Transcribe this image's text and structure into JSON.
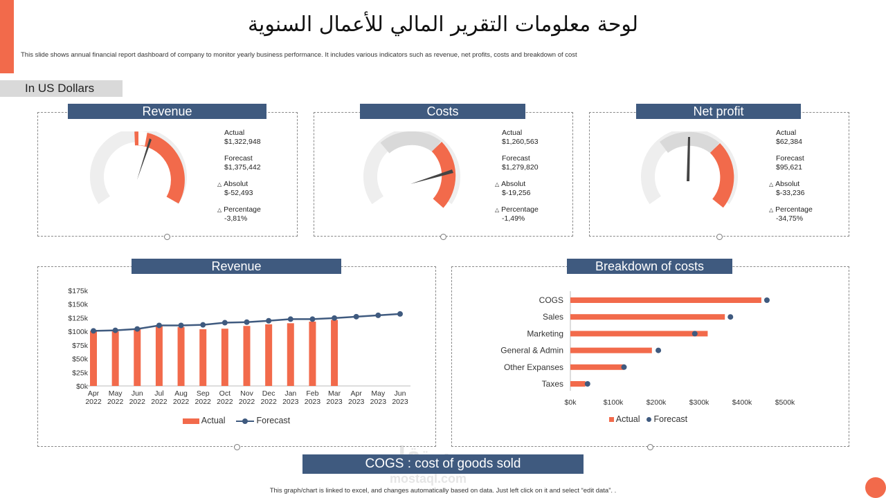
{
  "header": {
    "title": "لوحة معلومات التقرير المالي للأعمال السنوية",
    "subtitle": "This slide shows annual financial report dashboard of company to monitor  yearly business performance. It includes various indicators such as revenue, net profits, costs and breakdown of cost",
    "currency": "In US Dollars"
  },
  "colors": {
    "accent": "#f26a4b",
    "navy": "#3f5a7f",
    "gauge_bg": "#d9d9d9"
  },
  "gauges": [
    {
      "title": "Revenue",
      "actual_label": "Actual",
      "actual": "$1,322,948",
      "forecast_label": "Forecast",
      "forecast": "$1,375,442",
      "absolute_label": "Absolut",
      "absolute": "$-52,493",
      "percentage_label": "Percentage",
      "percentage": "-3,81%"
    },
    {
      "title": "Costs",
      "actual_label": "Actual",
      "actual": "$1,260,563",
      "forecast_label": "Forecast",
      "forecast": "$1,279,820",
      "absolute_label": "Absolut",
      "absolute": "$-19,256",
      "percentage_label": "Percentage",
      "percentage": "-1,49%"
    },
    {
      "title": "Net profit",
      "actual_label": "Actual",
      "actual": "$62,384",
      "forecast_label": "Forecast",
      "forecast": "$95,621",
      "absolute_label": "Absolut",
      "absolute": "$-33,236",
      "percentage_label": "Percentage",
      "percentage": "-34,75%"
    }
  ],
  "chart_data": [
    {
      "type": "bar",
      "title": "Revenue",
      "categories": [
        "Apr 2022",
        "May 2022",
        "Jun 2022",
        "Jul 2022",
        "Aug 2022",
        "Sep 2022",
        "Oct 2022",
        "Nov 2022",
        "Dec 2022",
        "Jan 2023",
        "Feb 2023",
        "Mar 2023",
        "Apr 2023",
        "May 2023",
        "Jun 2023"
      ],
      "category_lines": [
        [
          "Apr",
          "2022"
        ],
        [
          "May",
          "2022"
        ],
        [
          "Jun",
          "2022"
        ],
        [
          "Jul",
          "2022"
        ],
        [
          "Aug",
          "2022"
        ],
        [
          "Sep",
          "2022"
        ],
        [
          "Oct",
          "2022"
        ],
        [
          "Nov",
          "2022"
        ],
        [
          "Dec",
          "2022"
        ],
        [
          "Jan",
          "2023"
        ],
        [
          "Feb",
          "2023"
        ],
        [
          "Mar",
          "2023"
        ],
        [
          "Apr",
          "2023"
        ],
        [
          "May",
          "2023"
        ],
        [
          "Jun",
          "2023"
        ]
      ],
      "series": [
        {
          "name": "Actual",
          "kind": "bar",
          "values": [
            101000,
            100000,
            104000,
            110000,
            108000,
            104000,
            105000,
            110000,
            113000,
            115000,
            118000,
            121000,
            null,
            null,
            null
          ]
        },
        {
          "name": "Forecast",
          "kind": "line",
          "values": [
            101000,
            102000,
            104500,
            111000,
            111000,
            112000,
            116000,
            117000,
            119500,
            122500,
            122500,
            124500,
            127000,
            129500,
            132000
          ]
        }
      ],
      "yticks": [
        "$0k",
        "$25k",
        "$50k",
        "$75k",
        "$100k",
        "$125k",
        "$150k",
        "$175k"
      ],
      "ylim": [
        0,
        175000
      ],
      "legend": [
        "Actual",
        "Forecast"
      ]
    },
    {
      "type": "bar",
      "orientation": "horizontal",
      "title": "Breakdown of costs",
      "categories": [
        "COGS",
        "Sales",
        "Marketing",
        "General & Admin",
        "Other Expanses",
        "Taxes"
      ],
      "series": [
        {
          "name": "Actual",
          "kind": "bar",
          "values": [
            445000,
            360000,
            320000,
            190000,
            125000,
            35000
          ]
        },
        {
          "name": "Forecast",
          "kind": "dot",
          "values": [
            458000,
            373000,
            290000,
            205000,
            125000,
            40000
          ]
        }
      ],
      "xticks": [
        "$0k",
        "$100k",
        "$200k",
        "$300k",
        "$400k",
        "$500k"
      ],
      "xlim": [
        0,
        500000
      ],
      "legend": [
        "Actual",
        "Forecast"
      ]
    }
  ],
  "panels": {
    "revenue_chart_title": "Revenue",
    "breakdown_title": "Breakdown of costs"
  },
  "footer": {
    "cogs_note": "COGS : cost of goods sold",
    "footnote": "This graph/chart is linked to excel, and changes automatically based on data. Just left click on it and select “edit data”. .",
    "watermark": "مستقل",
    "watermark_latin": "mostaql.com"
  }
}
